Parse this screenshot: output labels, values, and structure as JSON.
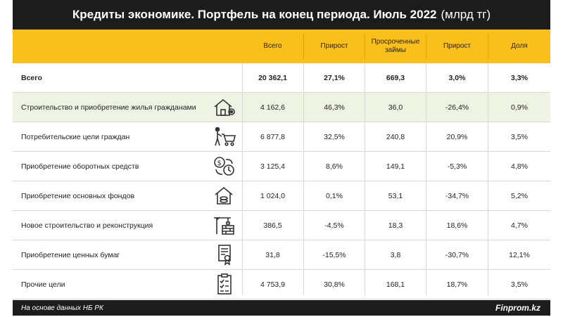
{
  "title": "Кредиты экономике. Портфель на конец периода. Июль 2022",
  "title_unit": "(млрд тг)",
  "columns": [
    "Всего",
    "Прирост",
    "Просроченные займы",
    "Прирост",
    "Доля"
  ],
  "rows": [
    {
      "category": "Всего",
      "icon": "",
      "values": [
        "20 362,1",
        "27,1%",
        "669,3",
        "3,0%",
        "3,3%"
      ]
    },
    {
      "category": "Строительство и приобретение жилья гражданами",
      "icon": "house-gear-icon",
      "values": [
        "4 162,6",
        "46,3%",
        "36,0",
        "-26,4%",
        "0,9%"
      ]
    },
    {
      "category": "Потребительские цели граждан",
      "icon": "shopping-cart-icon",
      "values": [
        "6 877,8",
        "32,5%",
        "240,8",
        "20,9%",
        "3,5%"
      ]
    },
    {
      "category": "Приобретение оборотных средств",
      "icon": "money-cycle-icon",
      "values": [
        "3 125,4",
        "8,6%",
        "149,1",
        "-5,3%",
        "4,8%"
      ]
    },
    {
      "category": "Приобретение основных фондов",
      "icon": "house-coins-icon",
      "values": [
        "1 024,0",
        "0,1%",
        "53,1",
        "-34,7%",
        "5,2%"
      ]
    },
    {
      "category": "Новое строительство и реконструкция",
      "icon": "crane-building-icon",
      "values": [
        "386,5",
        "-4,5%",
        "18,3",
        "18,6%",
        "4,7%"
      ]
    },
    {
      "category": "Приобретение ценных бумаг",
      "icon": "certificate-icon",
      "values": [
        "31,8",
        "-15,5%",
        "3,8",
        "-30,7%",
        "12,1%"
      ]
    },
    {
      "category": "Прочие цели",
      "icon": "checklist-icon",
      "values": [
        "4 753,9",
        "30,8%",
        "168,1",
        "18,7%",
        "3,5%"
      ]
    }
  ],
  "footer": {
    "source": "На основе данных НБ РК",
    "brand": "Finprom.kz"
  },
  "colors": {
    "accent": "#f9bf1a",
    "dark": "#1c1c1c",
    "highlight_row": "#eef3e4"
  }
}
